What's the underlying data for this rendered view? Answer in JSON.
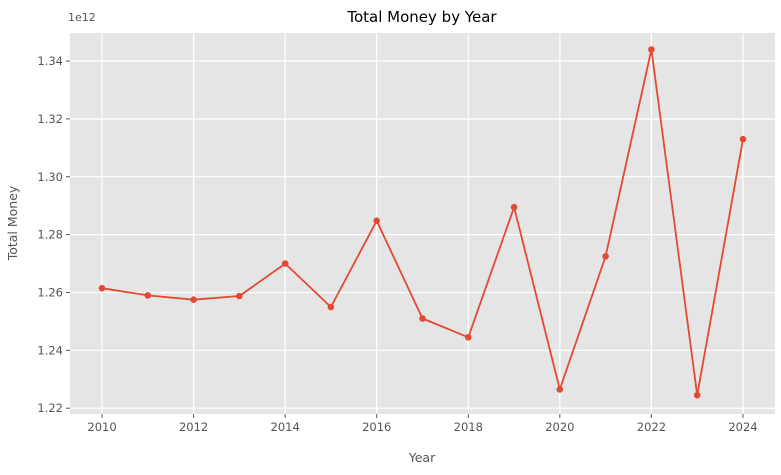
{
  "chart_data": {
    "type": "line",
    "title": "Total Money by Year",
    "xlabel": "Year",
    "ylabel": "Total Money",
    "offset_label": "1e12",
    "unit_note": "y values are in units of 1e12",
    "x": [
      2010,
      2011,
      2012,
      2013,
      2014,
      2015,
      2016,
      2017,
      2018,
      2019,
      2020,
      2021,
      2022,
      2023,
      2024
    ],
    "values": [
      1.2615,
      1.259,
      1.2575,
      1.2588,
      1.27,
      1.255,
      1.2848,
      1.251,
      1.2445,
      1.2895,
      1.2265,
      1.2725,
      1.344,
      1.2245,
      1.313
    ],
    "xticks": [
      2010,
      2012,
      2014,
      2016,
      2018,
      2020,
      2022,
      2024
    ],
    "yticks": [
      1.22,
      1.24,
      1.26,
      1.28,
      1.3,
      1.32,
      1.34
    ],
    "xlim": [
      2009.3,
      2024.7
    ],
    "ylim": [
      1.218,
      1.3497
    ],
    "grid": true,
    "legend_position": "none",
    "marker": "circle",
    "colors": {
      "line": "#E24A33",
      "panel_bg": "#E5E5E5",
      "grid": "#FFFFFF",
      "tick_label": "#555555",
      "figure_bg": "#FFFFFF",
      "title": "#000000"
    }
  }
}
